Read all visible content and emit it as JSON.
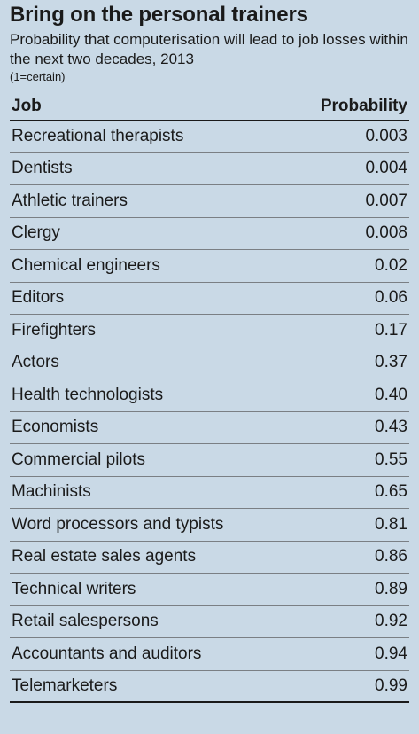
{
  "header": {
    "title": "Bring on the personal trainers",
    "subtitle": "Probability that computerisation will lead to job losses within the next two decades, 2013",
    "note": "(1=certain)"
  },
  "table": {
    "columns": [
      "Job",
      "Probability"
    ]
  },
  "chart_data": {
    "type": "table",
    "title": "Bring on the personal trainers",
    "subtitle": "Probability that computerisation will lead to job losses within the next two decades, 2013",
    "note": "(1=certain)",
    "columns": [
      "Job",
      "Probability"
    ],
    "rows": [
      {
        "job": "Recreational therapists",
        "probability": "0.003"
      },
      {
        "job": "Dentists",
        "probability": "0.004"
      },
      {
        "job": "Athletic trainers",
        "probability": "0.007"
      },
      {
        "job": "Clergy",
        "probability": "0.008"
      },
      {
        "job": "Chemical engineers",
        "probability": "0.02"
      },
      {
        "job": "Editors",
        "probability": "0.06"
      },
      {
        "job": "Firefighters",
        "probability": "0.17"
      },
      {
        "job": "Actors",
        "probability": "0.37"
      },
      {
        "job": "Health technologists",
        "probability": "0.40"
      },
      {
        "job": "Economists",
        "probability": "0.43"
      },
      {
        "job": "Commercial pilots",
        "probability": "0.55"
      },
      {
        "job": "Machinists",
        "probability": "0.65"
      },
      {
        "job": "Word processors and typists",
        "probability": "0.81"
      },
      {
        "job": "Real estate sales agents",
        "probability": "0.86"
      },
      {
        "job": "Technical writers",
        "probability": "0.89"
      },
      {
        "job": "Retail salespersons",
        "probability": "0.92"
      },
      {
        "job": "Accountants and auditors",
        "probability": "0.94"
      },
      {
        "job": "Telemarketers",
        "probability": "0.99"
      }
    ]
  }
}
